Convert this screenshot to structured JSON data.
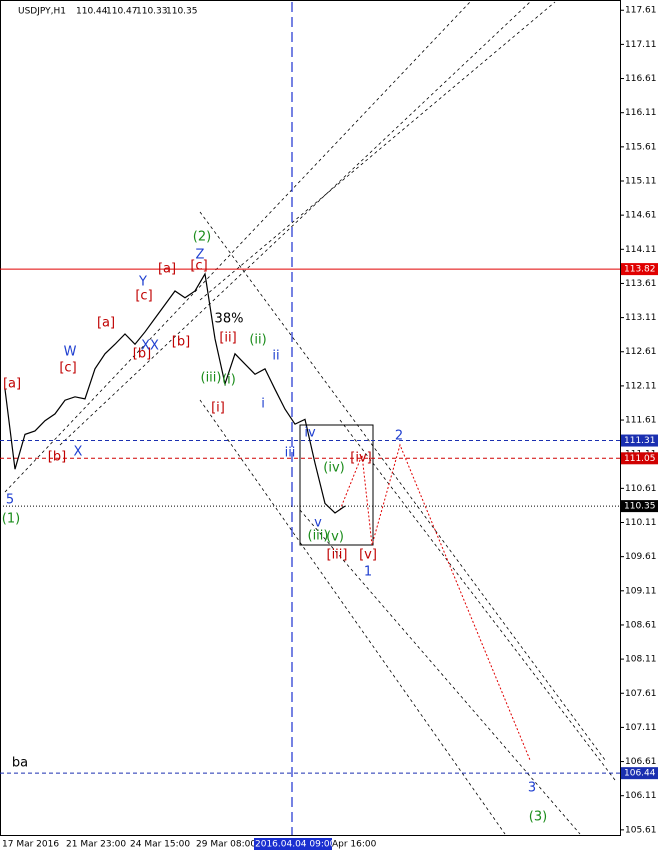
{
  "chart_data": {
    "type": "line",
    "title": "USDJPY,H1",
    "quote": [
      110.44,
      110.47,
      110.33,
      110.35
    ],
    "color": "#000000",
    "values": [
      112.06,
      110.89,
      111.4,
      111.45,
      111.6,
      111.7,
      111.9,
      111.95,
      111.92,
      112.36,
      112.58,
      112.72,
      112.87,
      112.72,
      112.9,
      113.1,
      113.3,
      113.5,
      113.4,
      113.5,
      113.75,
      112.8,
      112.14,
      112.58,
      112.43,
      112.28,
      112.36,
      112.06,
      111.77,
      111.55,
      111.62,
      110.98,
      110.39,
      110.25,
      110.35
    ],
    "ylim": [
      105.52,
      117.76
    ],
    "yticks": [
      117.61,
      117.11,
      116.61,
      116.11,
      115.61,
      115.11,
      114.61,
      114.11,
      113.61,
      113.11,
      112.61,
      112.11,
      111.61,
      111.11,
      110.61,
      110.11,
      109.61,
      109.11,
      108.61,
      108.11,
      107.61,
      107.11,
      106.61,
      106.11,
      105.61
    ],
    "x_labels": [
      "17 Mar 2016",
      "21 Mar 23:00",
      "24 Mar 15:00",
      "29 Mar 08:00",
      "2016.04.04 09:00",
      "Apr 16:00"
    ],
    "levels": [
      {
        "value": 113.82,
        "color": "#e00000",
        "style": "solid"
      },
      {
        "value": 111.31,
        "color": "#1a2fb0",
        "style": "dashed"
      },
      {
        "value": 111.05,
        "color": "#d00000",
        "style": "dashed"
      },
      {
        "value": 110.35,
        "color": "#000000",
        "style": "dotted"
      },
      {
        "value": 106.44,
        "color": "#1a2fb0",
        "style": "dashed"
      }
    ],
    "annotations": [
      {
        "text": "5",
        "color": "#2040d0"
      },
      {
        "text": "(1)",
        "color": "#1a8c1a"
      },
      {
        "text": "[a]",
        "color": "#c00000"
      },
      {
        "text": "[b]",
        "color": "#c00000"
      },
      {
        "text": "[c]",
        "color": "#c00000"
      },
      {
        "text": "W",
        "color": "#2040d0"
      },
      {
        "text": "X",
        "color": "#2040d0"
      },
      {
        "text": "[a]",
        "color": "#c00000"
      },
      {
        "text": "[b]",
        "color": "#c00000"
      },
      {
        "text": "[c]",
        "color": "#c00000"
      },
      {
        "text": "XX",
        "color": "#2040d0"
      },
      {
        "text": "Y",
        "color": "#2040d0"
      },
      {
        "text": "[a]",
        "color": "#c00000"
      },
      {
        "text": "[b]",
        "color": "#c00000"
      },
      {
        "text": "[c]",
        "color": "#c00000"
      },
      {
        "text": "Z",
        "color": "#2040d0"
      },
      {
        "text": "(2)",
        "color": "#1a8c1a"
      },
      {
        "text": "38%",
        "color": "#000000"
      },
      {
        "text": "[ii]",
        "color": "#c00000"
      },
      {
        "text": "[i]",
        "color": "#c00000"
      },
      {
        "text": "(ii)",
        "color": "#1a8c1a"
      },
      {
        "text": "(iii)",
        "color": "#1a8c1a"
      },
      {
        "text": "(i)",
        "color": "#1a8c1a"
      },
      {
        "text": "ii",
        "color": "#2040d0"
      },
      {
        "text": "i",
        "color": "#2040d0"
      },
      {
        "text": "iii",
        "color": "#2040d0"
      },
      {
        "text": "iv",
        "color": "#2040d0"
      },
      {
        "text": "(iv)",
        "color": "#1a8c1a"
      },
      {
        "text": "v",
        "color": "#2040d0"
      },
      {
        "text": "(iii)",
        "color": "#1a8c1a"
      },
      {
        "text": "(v)",
        "color": "#1a8c1a"
      },
      {
        "text": "[iii]",
        "color": "#c00000"
      },
      {
        "text": "[iv]",
        "color": "#c00000"
      },
      {
        "text": "[v]",
        "color": "#c00000"
      },
      {
        "text": "1",
        "color": "#2040d0"
      },
      {
        "text": "2",
        "color": "#2040d0"
      },
      {
        "text": "3",
        "color": "#2040d0"
      },
      {
        "text": "(3)",
        "color": "#1a8c1a"
      },
      {
        "text": "ba",
        "color": "#000000"
      }
    ]
  }
}
